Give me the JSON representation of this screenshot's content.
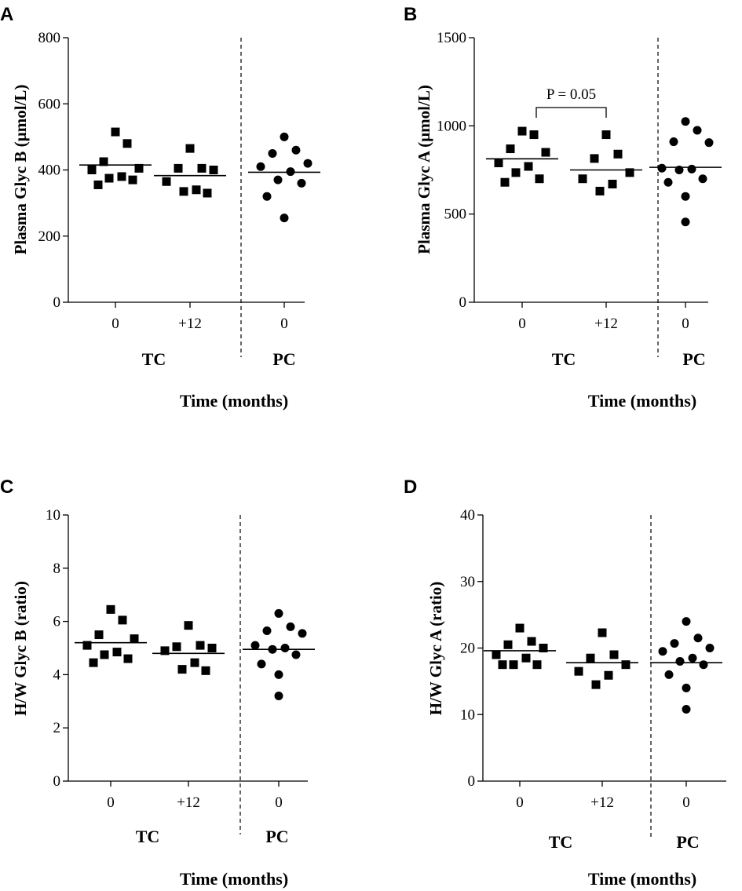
{
  "chart_data": [
    {
      "panel": "A",
      "type": "scatter",
      "ylabel": "Plasma Glyc B (µmol/L)",
      "ylim": [
        0,
        800
      ],
      "yticks": [
        0,
        200,
        400,
        600,
        800
      ],
      "xlabel": "Time (months)",
      "categories": [
        "0",
        "+12",
        "0"
      ],
      "groups": [
        {
          "name": "TC",
          "categories": [
            "0",
            "+12"
          ]
        },
        {
          "name": "PC",
          "categories": [
            "0"
          ]
        }
      ],
      "series": [
        {
          "category": "0",
          "group": "TC",
          "marker": "square",
          "mean": 415,
          "values": [
            515,
            480,
            425,
            405,
            400,
            380,
            375,
            370,
            355
          ]
        },
        {
          "category": "+12",
          "group": "TC",
          "marker": "square",
          "mean": 383,
          "values": [
            465,
            405,
            405,
            400,
            365,
            340,
            335,
            330
          ]
        },
        {
          "category": "0",
          "group": "PC",
          "marker": "circle",
          "mean": 393,
          "values": [
            500,
            460,
            450,
            420,
            410,
            395,
            370,
            360,
            320,
            255
          ]
        }
      ]
    },
    {
      "panel": "B",
      "type": "scatter",
      "ylabel": "Plasma Glyc A (µmol/L)",
      "ylim": [
        0,
        1500
      ],
      "yticks": [
        0,
        500,
        1000,
        1500
      ],
      "xlabel": "Time (months)",
      "categories": [
        "0",
        "+12",
        "0"
      ],
      "groups": [
        {
          "name": "TC",
          "categories": [
            "0",
            "+12"
          ]
        },
        {
          "name": "PC",
          "categories": [
            "0"
          ]
        }
      ],
      "annotation": {
        "text": "P = 0.05",
        "between": [
          "0",
          "+12"
        ]
      },
      "series": [
        {
          "category": "0",
          "group": "TC",
          "marker": "square",
          "mean": 813,
          "values": [
            970,
            950,
            870,
            850,
            790,
            770,
            735,
            700,
            680
          ]
        },
        {
          "category": "+12",
          "group": "TC",
          "marker": "square",
          "mean": 750,
          "values": [
            950,
            840,
            815,
            735,
            700,
            670,
            630
          ]
        },
        {
          "category": "0",
          "group": "PC",
          "marker": "circle",
          "mean": 765,
          "values": [
            1025,
            975,
            910,
            905,
            760,
            755,
            750,
            700,
            680,
            600,
            455
          ]
        }
      ]
    },
    {
      "panel": "C",
      "type": "scatter",
      "ylabel": "H/W Glyc B (ratio)",
      "ylim": [
        0,
        10
      ],
      "yticks": [
        0,
        2,
        4,
        6,
        8,
        10
      ],
      "xlabel": "Time (months)",
      "categories": [
        "0",
        "+12",
        "0"
      ],
      "groups": [
        {
          "name": "TC",
          "categories": [
            "0",
            "+12"
          ]
        },
        {
          "name": "PC",
          "categories": [
            "0"
          ]
        }
      ],
      "series": [
        {
          "category": "0",
          "group": "TC",
          "marker": "square",
          "mean": 5.2,
          "values": [
            6.45,
            6.05,
            5.5,
            5.35,
            5.1,
            4.85,
            4.75,
            4.6,
            4.45
          ]
        },
        {
          "category": "+12",
          "group": "TC",
          "marker": "square",
          "mean": 4.8,
          "values": [
            5.85,
            5.1,
            5.05,
            5.0,
            4.9,
            4.45,
            4.2,
            4.15
          ]
        },
        {
          "category": "0",
          "group": "PC",
          "marker": "circle",
          "mean": 4.95,
          "values": [
            6.3,
            5.8,
            5.65,
            5.55,
            5.1,
            5.0,
            4.95,
            4.75,
            4.4,
            4.0,
            3.2
          ]
        }
      ]
    },
    {
      "panel": "D",
      "type": "scatter",
      "ylabel": "H/W Glyc A (ratio)",
      "ylim": [
        0,
        40
      ],
      "yticks": [
        0,
        10,
        20,
        30,
        40
      ],
      "xlabel": "Time (months)",
      "categories": [
        "0",
        "+12",
        "0"
      ],
      "groups": [
        {
          "name": "TC",
          "categories": [
            "0",
            "+12"
          ]
        },
        {
          "name": "PC",
          "categories": [
            "0"
          ]
        }
      ],
      "series": [
        {
          "category": "0",
          "group": "TC",
          "marker": "square",
          "mean": 19.6,
          "values": [
            23.0,
            21.0,
            20.5,
            20.0,
            19.0,
            18.5,
            17.5,
            17.5,
            17.5
          ]
        },
        {
          "category": "+12",
          "group": "TC",
          "marker": "square",
          "mean": 17.8,
          "values": [
            22.3,
            19.0,
            18.5,
            17.5,
            16.5,
            15.9,
            14.5
          ]
        },
        {
          "category": "0",
          "group": "PC",
          "marker": "circle",
          "mean": 17.8,
          "values": [
            24.0,
            21.5,
            20.7,
            20.0,
            19.5,
            18.5,
            18.0,
            17.5,
            16.0,
            14.0,
            10.8
          ]
        }
      ]
    }
  ]
}
